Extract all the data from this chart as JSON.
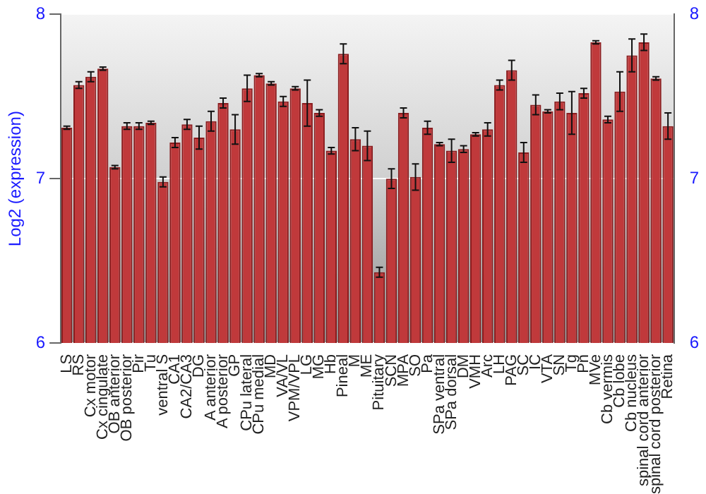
{
  "chart_data": {
    "type": "bar",
    "ylabel": "Log2 (expression)",
    "categories": [
      "LS",
      "RS",
      "Cx motor",
      "Cx cingulate",
      "OB anterior",
      "OB posterior",
      "Pir",
      "Tu",
      "ventral S",
      "CA1",
      "CA2/CA3",
      "DG",
      "A anterior",
      "A posterior",
      "GP",
      "CPu lateral",
      "CPu medial",
      "MD",
      "VA/VL",
      "VPM/VPL",
      "LG",
      "MG",
      "Hb",
      "Pineal",
      "M",
      "ME",
      "Pituitary",
      "SCN",
      "MPA",
      "SO",
      "Pa",
      "SPa ventral",
      "SPa dorsal",
      "DM",
      "VMH",
      "Arc",
      "LH",
      "PAG",
      "SC",
      "IC",
      "VTA",
      "SN",
      "Tg",
      "Pn",
      "MVe",
      "Cb vermis",
      "Cb lobe",
      "Cb nucleus",
      "spinal cord anterior",
      "spinal cord posterior",
      "Retina"
    ],
    "values": [
      7.31,
      7.57,
      7.62,
      7.67,
      7.07,
      7.32,
      7.32,
      7.34,
      6.98,
      7.22,
      7.33,
      7.25,
      7.35,
      7.46,
      7.3,
      7.55,
      7.63,
      7.58,
      7.47,
      7.55,
      7.46,
      7.4,
      7.17,
      7.76,
      7.24,
      7.2,
      6.43,
      7.0,
      7.4,
      7.01,
      7.31,
      7.21,
      7.17,
      7.18,
      7.27,
      7.3,
      7.57,
      7.66,
      7.16,
      7.45,
      7.41,
      7.47,
      7.4,
      7.52,
      7.83,
      7.36,
      7.53,
      7.75,
      7.83,
      7.61,
      7.32
    ],
    "errors": [
      0.01,
      0.02,
      0.03,
      0.01,
      0.01,
      0.02,
      0.02,
      0.01,
      0.03,
      0.03,
      0.03,
      0.07,
      0.06,
      0.03,
      0.09,
      0.08,
      0.01,
      0.01,
      0.03,
      0.01,
      0.14,
      0.02,
      0.02,
      0.06,
      0.07,
      0.09,
      0.03,
      0.06,
      0.03,
      0.08,
      0.04,
      0.01,
      0.07,
      0.02,
      0.01,
      0.04,
      0.03,
      0.06,
      0.06,
      0.06,
      0.01,
      0.05,
      0.13,
      0.03,
      0.01,
      0.02,
      0.12,
      0.1,
      0.05,
      0.01,
      0.08
    ],
    "color": "#c0393b",
    "ylim": [
      6,
      8
    ],
    "yticks": [
      6,
      7,
      8
    ],
    "y2lim": [
      6,
      8
    ],
    "y2ticks": [
      6,
      7,
      8
    ],
    "grid": "y",
    "legend": false
  }
}
